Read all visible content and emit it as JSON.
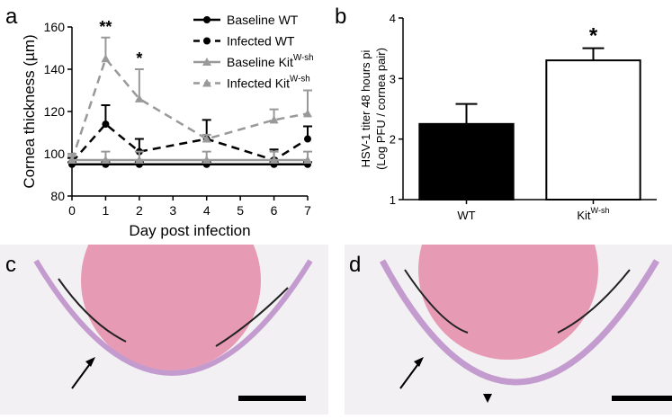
{
  "chart_data": [
    {
      "type": "line",
      "panel_label": "a",
      "xlabel": "Day post infection",
      "ylabel": "Cornea thickness (µm)",
      "x": [
        0,
        1,
        2,
        4,
        6,
        7
      ],
      "xlim": [
        0,
        7
      ],
      "xticks": [
        0,
        1,
        2,
        3,
        4,
        5,
        6,
        7
      ],
      "ylim": [
        80,
        160
      ],
      "yticks": [
        80,
        100,
        120,
        140,
        160
      ],
      "series": [
        {
          "name": "Baseline WT",
          "name_sup": null,
          "color": "#000000",
          "dashed": false,
          "marker": "circle",
          "values": [
            95,
            95,
            95,
            95,
            95,
            95
          ],
          "errors": [
            1,
            1,
            1,
            1,
            1,
            1
          ]
        },
        {
          "name": "Infected WT",
          "name_sup": null,
          "color": "#000000",
          "dashed": true,
          "marker": "circle",
          "values": [
            96,
            114,
            101,
            107,
            97,
            107
          ],
          "errors": [
            2,
            9,
            6,
            9,
            5,
            6
          ]
        },
        {
          "name": "Baseline Kit",
          "name_sup": "W-sh",
          "color": "#999999",
          "dashed": false,
          "marker": "triangle",
          "values": [
            97,
            97,
            97,
            97,
            97,
            97
          ],
          "errors": [
            3,
            4,
            4,
            4,
            4,
            4
          ]
        },
        {
          "name": "Infected Kit",
          "name_sup": "W-sh",
          "color": "#999999",
          "dashed": true,
          "marker": "triangle",
          "values": [
            97,
            145,
            126,
            107,
            116,
            119
          ],
          "errors": [
            2,
            10,
            14,
            2,
            5,
            11
          ]
        }
      ],
      "annotations": [
        {
          "text": "**",
          "x": 1
        },
        {
          "text": "*",
          "x": 2
        }
      ]
    },
    {
      "type": "bar",
      "panel_label": "b",
      "ylabel": [
        "HSV-1 titer 48 hours pi",
        "(Log PFU / cornea pair)"
      ],
      "categories": [
        "WT",
        "Kit"
      ],
      "category_sups": [
        null,
        "W-sh"
      ],
      "values": [
        2.25,
        3.3
      ],
      "errors": [
        0.33,
        0.2
      ],
      "colors": [
        "#000000",
        "#ffffff"
      ],
      "ylim": [
        1,
        4
      ],
      "yticks": [
        1,
        2,
        3,
        4
      ],
      "annotations": [
        {
          "text": "*",
          "category": "Kit"
        }
      ]
    }
  ],
  "images": [
    {
      "panel_label": "c"
    },
    {
      "panel_label": "d"
    }
  ]
}
